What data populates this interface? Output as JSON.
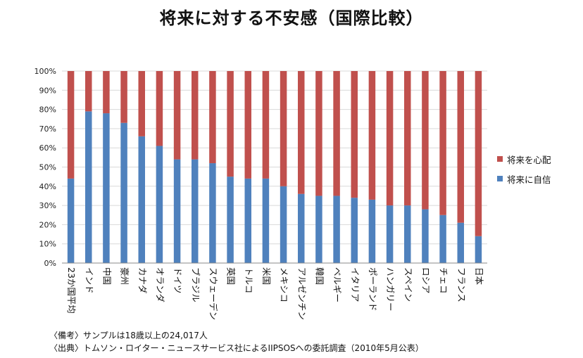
{
  "title": "将来に対する不安感（国際比較）",
  "colors": {
    "worry": "#c0504d",
    "confidence": "#4f81bd",
    "grid": "#d9d9d9",
    "axis": "#888888"
  },
  "legend": {
    "worry_label": "将来を心配",
    "confidence_label": "将来に自信"
  },
  "notes": {
    "line1": "〈備考〉サンプルは18歳以上の24,017人",
    "line2": "〈出典〉トムソン・ロイター・ニュースサービス社によるIIPSOSへの委託調査（2010年5月公表）"
  },
  "chart_data": {
    "type": "bar",
    "stacked": true,
    "y_format": "percent",
    "ylim": [
      0,
      100
    ],
    "yticks": [
      0,
      10,
      20,
      30,
      40,
      50,
      60,
      70,
      80,
      90,
      100
    ],
    "categories": [
      "23か国平均",
      "インド",
      "中国",
      "豪州",
      "カナダ",
      "オランダ",
      "ドイツ",
      "ブラジル",
      "スウェーデン",
      "英国",
      "トルコ",
      "米国",
      "メキシコ",
      "アルゼンチン",
      "韓国",
      "ベルギー",
      "イタリア",
      "ポーランド",
      "ハンガリー",
      "スペイン",
      "ロシア",
      "チェコ",
      "フランス",
      "日本"
    ],
    "series": [
      {
        "name": "将来に自信",
        "color": "#4f81bd",
        "values": [
          44,
          79,
          78,
          73,
          66,
          61,
          54,
          54,
          52,
          45,
          44,
          44,
          40,
          36,
          35,
          35,
          34,
          33,
          30,
          30,
          28,
          25,
          21,
          14
        ]
      },
      {
        "name": "将来を心配",
        "color": "#c0504d",
        "values": [
          56,
          21,
          22,
          27,
          34,
          39,
          46,
          46,
          48,
          55,
          56,
          56,
          60,
          64,
          65,
          65,
          66,
          67,
          70,
          70,
          72,
          75,
          79,
          86
        ]
      }
    ],
    "grid": true,
    "legend_position": "right"
  }
}
